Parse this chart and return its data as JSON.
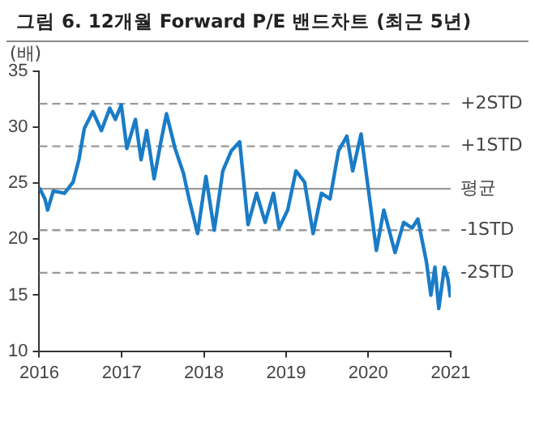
{
  "chart_data": {
    "type": "line",
    "title": "그림 6. 12개월 Forward P/E 밴드차트 (최근 5년)",
    "ylabel": "(배)",
    "x": [
      "2016-01-01",
      "2016-01-26",
      "2016-02-07",
      "2016-03-03",
      "2016-04-22",
      "2016-05-30",
      "2016-06-25",
      "2016-07-19",
      "2016-08-26",
      "2016-10-03",
      "2016-11-09",
      "2016-12-04",
      "2016-12-30",
      "2017-01-24",
      "2017-03-03",
      "2017-03-28",
      "2017-04-22",
      "2017-05-25",
      "2017-06-24",
      "2017-07-19",
      "2017-08-26",
      "2017-10-02",
      "2017-10-27",
      "2017-12-04",
      "2018-01-10",
      "2018-02-16",
      "2018-03-26",
      "2018-05-03",
      "2018-06-09",
      "2018-07-16",
      "2018-08-23",
      "2018-09-30",
      "2018-11-06",
      "2018-12-01",
      "2019-01-08",
      "2019-02-14",
      "2019-03-24",
      "2019-05-01",
      "2019-06-07",
      "2019-07-15",
      "2019-08-22",
      "2019-09-28",
      "2019-10-24",
      "2019-11-30",
      "2020-01-07",
      "2020-02-06",
      "2020-03-10",
      "2020-04-29",
      "2020-06-06",
      "2020-07-14",
      "2020-08-08",
      "2020-09-15",
      "2020-10-05",
      "2020-10-23",
      "2020-11-09",
      "2020-12-04",
      "2020-12-19",
      "2020-12-31"
    ],
    "series": [
      {
        "color": "#1a7cc7",
        "values": [
          24.6,
          23.6,
          22.6,
          24.3,
          24.1,
          25.1,
          27.1,
          29.9,
          31.4,
          29.7,
          31.7,
          30.7,
          32.0,
          28.1,
          30.7,
          27.1,
          29.7,
          25.4,
          28.7,
          31.2,
          28.1,
          25.9,
          23.6,
          20.5,
          25.6,
          20.8,
          26.1,
          27.9,
          28.7,
          21.3,
          24.1,
          21.5,
          24.1,
          21.0,
          22.6,
          26.1,
          25.1,
          20.5,
          24.1,
          23.6,
          27.9,
          29.2,
          26.1,
          29.4,
          23.6,
          19.0,
          22.6,
          18.8,
          21.5,
          21.0,
          21.8,
          18.0,
          15.0,
          17.5,
          13.8,
          17.5,
          16.5,
          14.8
        ]
      }
    ],
    "xlim": [
      "2016",
      "2021"
    ],
    "xticks": [
      "2016",
      "2017",
      "2018",
      "2019",
      "2020",
      "2021"
    ],
    "ylim": [
      10,
      35
    ],
    "yticks": [
      10,
      15,
      20,
      25,
      30,
      35
    ],
    "ref_lines": [
      {
        "axis": "y",
        "value": 32.1,
        "label": "+2STD",
        "color": "#999999",
        "line_style": "dashed"
      },
      {
        "axis": "y",
        "value": 28.3,
        "label": "+1STD",
        "color": "#999999",
        "line_style": "dashed"
      },
      {
        "axis": "y",
        "value": 24.5,
        "label": "평균",
        "color": "#999999",
        "line_style": "solid"
      },
      {
        "axis": "y",
        "value": 20.8,
        "label": "-1STD",
        "color": "#999999",
        "line_style": "dashed"
      },
      {
        "axis": "y",
        "value": 17.0,
        "label": "-2STD",
        "color": "#999999",
        "line_style": "dashed"
      }
    ],
    "grid": false,
    "legend": false,
    "marker": "none",
    "line_style": "solid"
  }
}
